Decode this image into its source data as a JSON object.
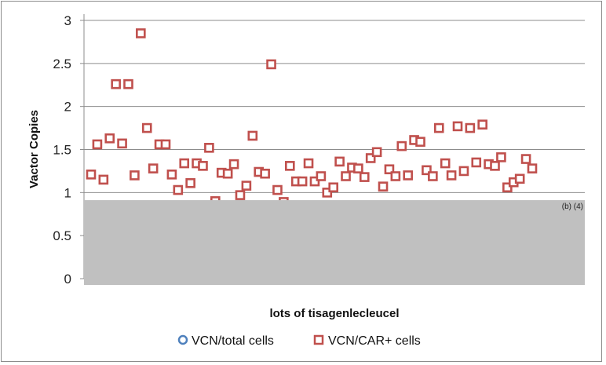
{
  "chart_data": {
    "type": "scatter",
    "ylabel": "Vactor Copies",
    "xlabel": "lots of tisagenlecleucel",
    "ylim": [
      0,
      3
    ],
    "yticks": [
      "0",
      "0.5",
      "1",
      "1.5",
      "2",
      "2.5",
      "3"
    ],
    "grid": "horizontal",
    "legend_position": "bottom",
    "series": [
      {
        "name": "VCN/total cells",
        "marker": "circle",
        "color": "#4F81BD",
        "values": []
      },
      {
        "name": "VCN/CAR+ cells",
        "marker": "square",
        "color": "#C0504D",
        "values": [
          1.21,
          1.56,
          1.15,
          1.63,
          2.26,
          1.57,
          2.26,
          1.2,
          2.85,
          1.75,
          1.28,
          1.56,
          1.56,
          1.21,
          1.03,
          1.34,
          1.11,
          1.34,
          1.31,
          1.52,
          0.9,
          1.23,
          1.22,
          1.33,
          0.97,
          1.08,
          1.66,
          1.24,
          1.22,
          2.49,
          1.03,
          0.89,
          1.31,
          1.13,
          1.13,
          1.34,
          1.13,
          1.19,
          1.0,
          1.06,
          1.36,
          1.19,
          1.29,
          1.28,
          1.18,
          1.4,
          1.47,
          1.07,
          1.27,
          1.19,
          1.54,
          1.2,
          1.61,
          1.59,
          1.26,
          1.19,
          1.75,
          1.34,
          1.2,
          1.77,
          1.25,
          1.75,
          1.35,
          1.79,
          1.33,
          1.31,
          1.41,
          1.06,
          1.12,
          1.16,
          1.39,
          1.28
        ]
      }
    ]
  },
  "redaction": {
    "label": "(b) (4)",
    "color": "#C0C0C0"
  }
}
